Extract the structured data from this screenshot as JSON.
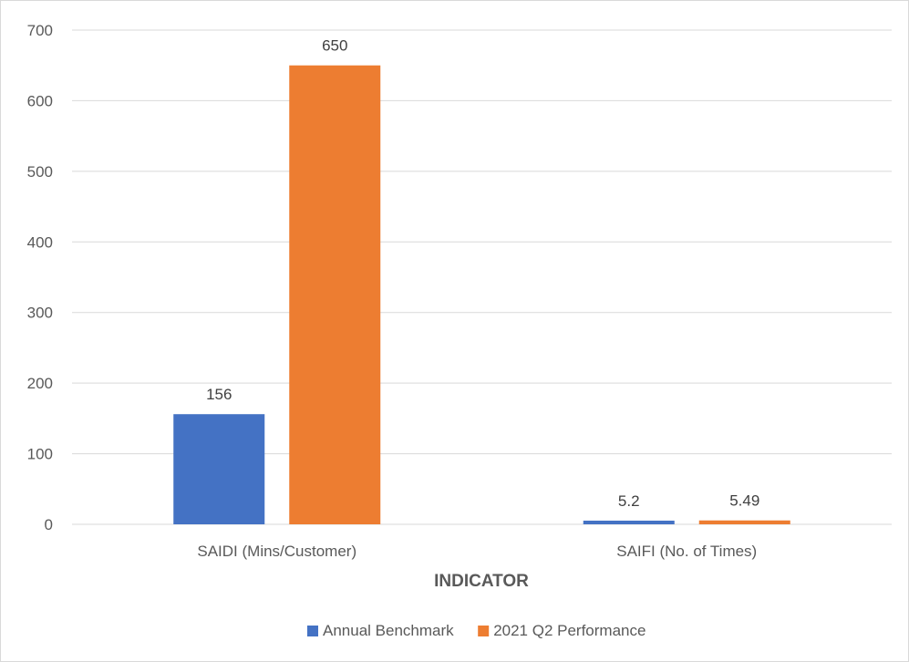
{
  "chart_data": {
    "type": "bar",
    "title": "",
    "xlabel": "INDICATOR",
    "ylabel": "",
    "categories": [
      "SAIDI (Mins/Customer)",
      "SAIFI (No. of Times)"
    ],
    "series": [
      {
        "name": "Annual Benchmark",
        "values": [
          156,
          5.2
        ],
        "labels": [
          "156",
          "5.2"
        ],
        "color": "#4472C4"
      },
      {
        "name": "2021 Q2 Performance",
        "values": [
          650,
          5.49
        ],
        "labels": [
          "650",
          "5.49"
        ],
        "color": "#ED7D31"
      }
    ],
    "ylim": [
      0,
      700
    ],
    "yticks": [
      0,
      100,
      200,
      300,
      400,
      500,
      600,
      700
    ],
    "grid": true,
    "legend_position": "bottom",
    "gridline_color": "#d9d9d9"
  }
}
